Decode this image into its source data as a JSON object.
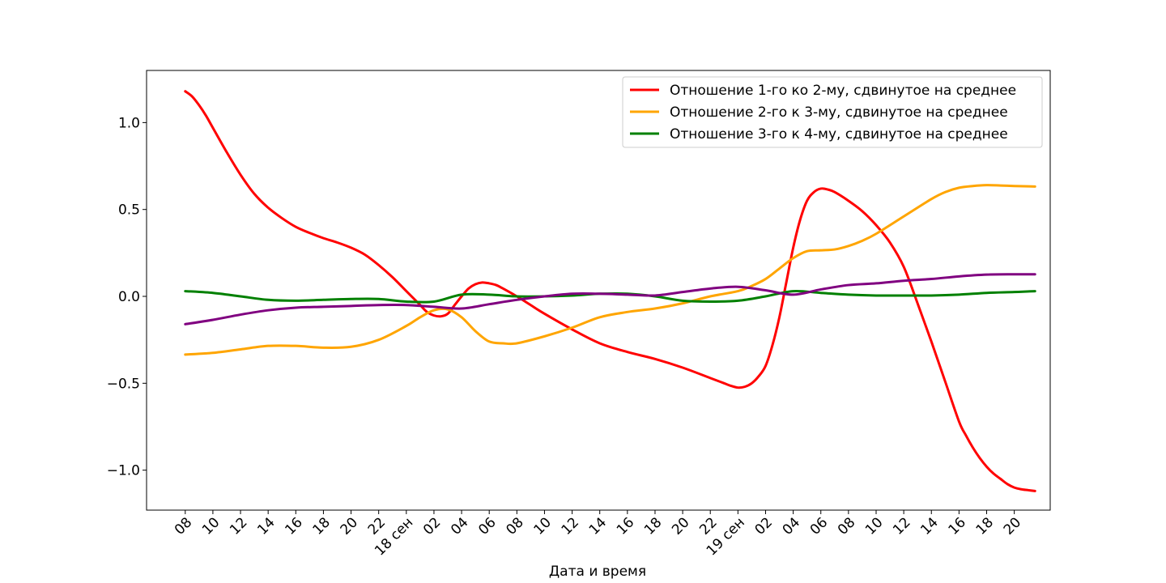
{
  "chart_data": {
    "type": "line",
    "title": "",
    "xlabel": "Дата и время",
    "ylabel": "",
    "x_ticks": [
      "08",
      "10",
      "12",
      "14",
      "16",
      "18",
      "20",
      "22",
      "18 сен",
      "02",
      "04",
      "06",
      "08",
      "10",
      "12",
      "14",
      "16",
      "18",
      "20",
      "22",
      "19 сен",
      "02",
      "04",
      "06",
      "08",
      "10",
      "12",
      "14",
      "16",
      "18",
      "20"
    ],
    "x_tick_hours": [
      8,
      10,
      12,
      14,
      16,
      18,
      20,
      22,
      24,
      26,
      28,
      30,
      32,
      34,
      36,
      38,
      40,
      42,
      44,
      46,
      48,
      50,
      52,
      54,
      56,
      58,
      60,
      62,
      64,
      66,
      68
    ],
    "x_range_hours": [
      5.2,
      70.6
    ],
    "y_ticks": [
      "1.0",
      "0.5",
      "0.0",
      "−0.5",
      "−1.0"
    ],
    "y_tick_values": [
      1.0,
      0.5,
      0.0,
      -0.5,
      -1.0
    ],
    "ylim": [
      -1.23,
      1.3
    ],
    "grid": false,
    "legend_position": "top-right",
    "legend_entries": [
      {
        "label": "Отношение 1-го ко 2-му, сдвинутое на среднее",
        "color": "#ff0000"
      },
      {
        "label": "Отношение 2-го к 3-му, сдвинутое на среднее",
        "color": "#ffa500"
      },
      {
        "label": "Отношение 3-го к 4-му, сдвинутое на среднее",
        "color": "#008000"
      }
    ],
    "series": [
      {
        "color": "#ff0000",
        "x": [
          8,
          8.5,
          9,
          9.5,
          10,
          11,
          12,
          13,
          14,
          15,
          16,
          17,
          18,
          19,
          20,
          21,
          22,
          23,
          24,
          25,
          25.5,
          26,
          26.5,
          27,
          27.5,
          28,
          28.5,
          29,
          29.5,
          30,
          30.5,
          31,
          32,
          33,
          34,
          36,
          38,
          40,
          42,
          44,
          46,
          47,
          47.5,
          48,
          48.5,
          49,
          49.5,
          50,
          50.5,
          51,
          51.5,
          52,
          52.5,
          53,
          53.5,
          54,
          54.5,
          55,
          56,
          57,
          58,
          59,
          60,
          61,
          62,
          63,
          64,
          64.5,
          65,
          65.5,
          66,
          66.5,
          67,
          67.5,
          68,
          68.5,
          69,
          69.5
        ],
        "y": [
          1.18,
          1.15,
          1.1,
          1.04,
          0.97,
          0.83,
          0.7,
          0.59,
          0.51,
          0.45,
          0.4,
          0.365,
          0.335,
          0.31,
          0.28,
          0.24,
          0.18,
          0.11,
          0.03,
          -0.05,
          -0.09,
          -0.11,
          -0.115,
          -0.1,
          -0.05,
          0.0,
          0.045,
          0.07,
          0.08,
          0.075,
          0.065,
          0.045,
          0.0,
          -0.05,
          -0.1,
          -0.19,
          -0.27,
          -0.32,
          -0.36,
          -0.41,
          -0.47,
          -0.5,
          -0.515,
          -0.525,
          -0.52,
          -0.5,
          -0.46,
          -0.4,
          -0.28,
          -0.12,
          0.08,
          0.28,
          0.44,
          0.55,
          0.6,
          0.62,
          0.615,
          0.6,
          0.55,
          0.49,
          0.41,
          0.31,
          0.17,
          -0.04,
          -0.26,
          -0.49,
          -0.72,
          -0.8,
          -0.87,
          -0.93,
          -0.98,
          -1.02,
          -1.05,
          -1.08,
          -1.1,
          -1.11,
          -1.115,
          -1.12
        ]
      },
      {
        "color": "#ffa500",
        "x": [
          8,
          10,
          12,
          14,
          16,
          18,
          20,
          22,
          24,
          25,
          26,
          27,
          28,
          29,
          30,
          31,
          32,
          34,
          36,
          38,
          40,
          42,
          44,
          46,
          48,
          49,
          50,
          51,
          52,
          53,
          54,
          55,
          56,
          57,
          58,
          60,
          62,
          63,
          64,
          65,
          66,
          67,
          68,
          69,
          69.5
        ],
        "y": [
          -0.335,
          -0.325,
          -0.305,
          -0.285,
          -0.285,
          -0.295,
          -0.29,
          -0.25,
          -0.17,
          -0.12,
          -0.08,
          -0.075,
          -0.12,
          -0.2,
          -0.26,
          -0.27,
          -0.27,
          -0.23,
          -0.18,
          -0.12,
          -0.09,
          -0.07,
          -0.04,
          0.0,
          0.03,
          0.06,
          0.1,
          0.16,
          0.22,
          0.26,
          0.265,
          0.27,
          0.29,
          0.32,
          0.36,
          0.46,
          0.56,
          0.6,
          0.625,
          0.635,
          0.64,
          0.638,
          0.635,
          0.633,
          0.632
        ]
      },
      {
        "color": "#008000",
        "x": [
          8,
          10,
          12,
          14,
          16,
          18,
          20,
          22,
          24,
          26,
          28,
          30,
          32,
          34,
          36,
          38,
          40,
          42,
          44,
          46,
          48,
          50,
          52,
          54,
          56,
          58,
          60,
          62,
          64,
          66,
          68,
          69.5
        ],
        "y": [
          0.03,
          0.02,
          0.0,
          -0.02,
          -0.025,
          -0.02,
          -0.015,
          -0.015,
          -0.03,
          -0.03,
          0.01,
          0.01,
          0.0,
          0.0,
          0.005,
          0.015,
          0.015,
          0.0,
          -0.025,
          -0.03,
          -0.025,
          0.0,
          0.03,
          0.02,
          0.01,
          0.005,
          0.005,
          0.005,
          0.01,
          0.02,
          0.025,
          0.03
        ]
      },
      {
        "color": "#800080",
        "x": [
          8,
          10,
          12,
          14,
          16,
          18,
          20,
          22,
          24,
          26,
          28,
          30,
          32,
          34,
          36,
          38,
          40,
          42,
          44,
          46,
          48,
          50,
          52,
          54,
          56,
          58,
          60,
          62,
          64,
          66,
          68,
          69.5
        ],
        "y": [
          -0.16,
          -0.135,
          -0.105,
          -0.08,
          -0.065,
          -0.06,
          -0.055,
          -0.05,
          -0.05,
          -0.06,
          -0.07,
          -0.045,
          -0.02,
          0.0,
          0.015,
          0.015,
          0.01,
          0.005,
          0.025,
          0.045,
          0.055,
          0.035,
          0.01,
          0.04,
          0.065,
          0.075,
          0.09,
          0.1,
          0.115,
          0.125,
          0.127,
          0.127
        ]
      }
    ]
  }
}
